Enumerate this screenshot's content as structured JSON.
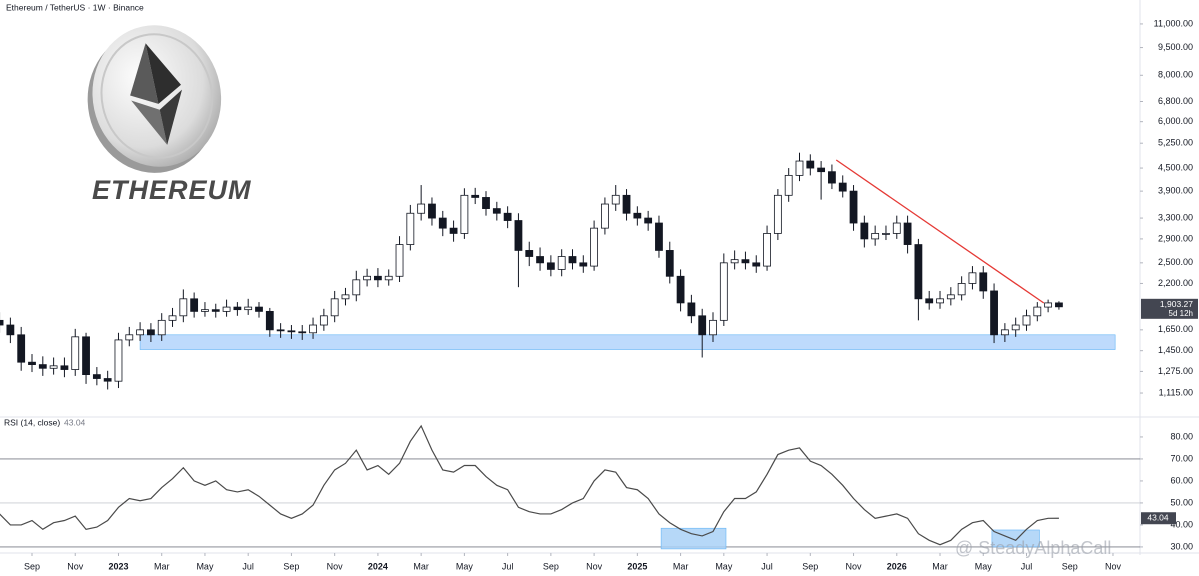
{
  "chart_data": [
    {
      "type": "candlestick",
      "title": "Ethereum / TetherUS · 1W · Binance",
      "annotations": [
        "ETHEREUM"
      ],
      "log_scale": true,
      "xlim": [
        -1.48,
        51.25
      ],
      "ylim": [
        973,
        12760
      ],
      "yticks": [
        {
          "value": 11000,
          "label": "11,000.00"
        },
        {
          "value": 9500,
          "label": "9,500.00"
        },
        {
          "value": 8000,
          "label": "8,000.00"
        },
        {
          "value": 6800,
          "label": "6,800.00"
        },
        {
          "value": 6000,
          "label": "6,000.00"
        },
        {
          "value": 5250,
          "label": "5,250.00"
        },
        {
          "value": 4500,
          "label": "4,500.00"
        },
        {
          "value": 3900,
          "label": "3,900.00"
        },
        {
          "value": 3300,
          "label": "3,300.00"
        },
        {
          "value": 2900,
          "label": "2,900.00"
        },
        {
          "value": 2500,
          "label": "2,500.00"
        },
        {
          "value": 2200,
          "label": "2,200.00"
        },
        {
          "value": 1650,
          "label": "1,650.00"
        },
        {
          "value": 1450,
          "label": "1,450.00"
        },
        {
          "value": 1275,
          "label": "1,275.00"
        },
        {
          "value": 1115,
          "label": "1,115.00"
        }
      ],
      "up_color": "#ffffff",
      "down_color": "#131722",
      "last_price_label": "1,903.27",
      "countdown": "5d 12h",
      "x": [
        -1.5,
        -1,
        -0.5,
        0,
        0.5,
        1,
        1.5,
        2,
        2.5,
        3,
        3.5,
        4,
        4.5,
        5,
        5.5,
        6,
        6.5,
        7,
        7.5,
        8,
        8.5,
        9,
        9.5,
        10,
        10.5,
        11,
        11.5,
        12,
        12.5,
        13,
        13.5,
        14,
        14.5,
        15,
        15.5,
        16,
        16.5,
        17,
        17.5,
        18,
        18.5,
        19,
        19.5,
        20,
        20.5,
        21,
        21.5,
        22,
        22.5,
        23,
        23.5,
        24,
        24.5,
        25,
        25.5,
        26,
        26.5,
        27,
        27.5,
        28,
        28.5,
        29,
        29.5,
        30,
        30.5,
        31,
        31.5,
        32,
        32.5,
        33,
        33.5,
        34,
        34.5,
        35,
        35.5,
        36,
        36.5,
        37,
        37.5,
        38,
        38.5,
        39,
        39.5,
        40,
        40.5,
        41,
        41.5,
        42,
        42.5,
        43,
        43.5,
        44,
        44.5,
        45,
        45.5,
        46,
        46.5,
        47,
        47.5
      ],
      "open": [
        1750,
        1700,
        1600,
        1350,
        1330,
        1300,
        1320,
        1290,
        1580,
        1250,
        1220,
        1200,
        1550,
        1600,
        1650,
        1600,
        1750,
        1800,
        2000,
        1850,
        1870,
        1850,
        1900,
        1870,
        1900,
        1850,
        1650,
        1640,
        1630,
        1620,
        1700,
        1800,
        2000,
        2050,
        2250,
        2300,
        2250,
        2300,
        2800,
        3400,
        3600,
        3300,
        3100,
        3000,
        3800,
        3750,
        3500,
        3400,
        3250,
        2700,
        2600,
        2500,
        2400,
        2600,
        2500,
        2450,
        3100,
        3600,
        3800,
        3400,
        3300,
        3200,
        2700,
        2300,
        1950,
        1800,
        1600,
        1750,
        2500,
        2550,
        2500,
        2450,
        3000,
        3800,
        4300,
        4700,
        4500,
        4400,
        4100,
        3900,
        3200,
        2900,
        3000,
        3000,
        3200,
        2800,
        2000,
        1950,
        2000,
        2050,
        2200,
        2350,
        2100,
        1600,
        1650,
        1700,
        1800,
        1900,
        1950
      ],
      "high": [
        1840,
        1780,
        1680,
        1420,
        1400,
        1390,
        1390,
        1660,
        1620,
        1310,
        1280,
        1620,
        1680,
        1730,
        1720,
        1830,
        1890,
        2120,
        2080,
        1960,
        1940,
        1990,
        1960,
        2000,
        1960,
        1890,
        1720,
        1700,
        1700,
        1780,
        1880,
        2100,
        2140,
        2380,
        2410,
        2420,
        2400,
        2950,
        3580,
        4050,
        3750,
        3450,
        3250,
        3970,
        3980,
        3900,
        3650,
        3550,
        3400,
        2850,
        2750,
        2620,
        2720,
        2720,
        2620,
        3250,
        3750,
        4050,
        3950,
        3550,
        3450,
        3350,
        2850,
        2400,
        2050,
        1880,
        1840,
        2650,
        2700,
        2680,
        2620,
        3150,
        3950,
        4500,
        4950,
        4900,
        4700,
        4600,
        4300,
        4050,
        3350,
        3150,
        3150,
        3350,
        3350,
        2900,
        2100,
        2100,
        2150,
        2300,
        2450,
        2450,
        2200,
        1720,
        1780,
        1870,
        1960,
        1990,
        1970
      ],
      "low": [
        1620,
        1520,
        1280,
        1270,
        1240,
        1250,
        1230,
        1240,
        1180,
        1170,
        1140,
        1150,
        1490,
        1540,
        1530,
        1540,
        1680,
        1730,
        1780,
        1790,
        1780,
        1790,
        1800,
        1810,
        1780,
        1580,
        1570,
        1560,
        1550,
        1560,
        1640,
        1730,
        1920,
        1970,
        2160,
        2150,
        2170,
        2220,
        2700,
        3250,
        3150,
        2950,
        2850,
        2900,
        3600,
        3350,
        3250,
        3100,
        2150,
        2450,
        2380,
        2300,
        2300,
        2400,
        2350,
        2380,
        2980,
        3450,
        3250,
        3150,
        3050,
        2580,
        2200,
        1850,
        1720,
        1390,
        1530,
        1690,
        2400,
        2400,
        2350,
        2380,
        2880,
        3650,
        4150,
        4300,
        3700,
        3950,
        3750,
        3050,
        2750,
        2780,
        2880,
        2900,
        2650,
        1750,
        1870,
        1880,
        1920,
        1980,
        2120,
        2000,
        1520,
        1530,
        1580,
        1640,
        1740,
        1840,
        1870
      ],
      "close": [
        1700,
        1600,
        1350,
        1330,
        1300,
        1320,
        1290,
        1580,
        1250,
        1220,
        1200,
        1550,
        1600,
        1650,
        1600,
        1750,
        1800,
        2000,
        1850,
        1870,
        1850,
        1900,
        1870,
        1900,
        1850,
        1650,
        1640,
        1630,
        1620,
        1700,
        1800,
        2000,
        2050,
        2250,
        2300,
        2250,
        2300,
        2800,
        3400,
        3600,
        3300,
        3100,
        3000,
        3800,
        3750,
        3500,
        3400,
        3250,
        2700,
        2600,
        2500,
        2400,
        2600,
        2500,
        2450,
        3100,
        3600,
        3800,
        3400,
        3300,
        3200,
        2700,
        2300,
        1950,
        1800,
        1600,
        1750,
        2500,
        2550,
        2500,
        2450,
        3000,
        3800,
        4300,
        4700,
        4500,
        4400,
        4100,
        3900,
        3200,
        2900,
        3000,
        3000,
        3200,
        2800,
        2000,
        1950,
        2000,
        2050,
        2200,
        2350,
        2100,
        1600,
        1650,
        1700,
        1800,
        1900,
        1950,
        1903.27
      ],
      "zones": [
        {
          "x": [
            5,
            50.1
          ],
          "y": [
            1460,
            1600
          ],
          "color": "#b3d4fc"
        }
      ],
      "trendline": {
        "x": [
          37.2,
          46.8
        ],
        "y": [
          4730,
          1949
        ],
        "color": "#e53935"
      }
    },
    {
      "type": "line",
      "title": "RSI (14, close)",
      "watermark": "@ SteadyAlphaCall",
      "xlim": [
        -1.48,
        51.25
      ],
      "ylim": [
        28.6,
        87.7
      ],
      "yticks": [
        {
          "value": 80,
          "label": "80.00"
        },
        {
          "value": 70,
          "label": "70.00"
        },
        {
          "value": 60,
          "label": "60.00"
        },
        {
          "value": 50,
          "label": "50.00"
        },
        {
          "value": 40,
          "label": "40.00"
        },
        {
          "value": 30,
          "label": "30.00"
        }
      ],
      "xticks": [
        {
          "value": 0,
          "label": "Sep"
        },
        {
          "value": 2,
          "label": "Nov"
        },
        {
          "value": 4,
          "label": "2023"
        },
        {
          "value": 6,
          "label": "Mar"
        },
        {
          "value": 8,
          "label": "May"
        },
        {
          "value": 10,
          "label": "Jul"
        },
        {
          "value": 12,
          "label": "Sep"
        },
        {
          "value": 14,
          "label": "Nov"
        },
        {
          "value": 16,
          "label": "2024"
        },
        {
          "value": 18,
          "label": "Mar"
        },
        {
          "value": 20,
          "label": "May"
        },
        {
          "value": 22,
          "label": "Jul"
        },
        {
          "value": 24,
          "label": "Sep"
        },
        {
          "value": 26,
          "label": "Nov"
        },
        {
          "value": 28,
          "label": "2025"
        },
        {
          "value": 30,
          "label": "Mar"
        },
        {
          "value": 32,
          "label": "May"
        },
        {
          "value": 34,
          "label": "Jul"
        },
        {
          "value": 36,
          "label": "Sep"
        },
        {
          "value": 38,
          "label": "Nov"
        },
        {
          "value": 40,
          "label": "2026"
        },
        {
          "value": 42,
          "label": "Mar"
        },
        {
          "value": 44,
          "label": "May"
        },
        {
          "value": 46,
          "label": "Jul"
        },
        {
          "value": 48,
          "label": "Sep"
        },
        {
          "value": 50,
          "label": "Nov"
        }
      ],
      "levels": [
        {
          "value": 70,
          "color": "#787b86"
        },
        {
          "value": 50,
          "color": "#c9cbd2"
        },
        {
          "value": 30,
          "color": "#787b86"
        }
      ],
      "x": [
        -1.5,
        -1,
        -0.5,
        0,
        0.5,
        1,
        1.5,
        2,
        2.5,
        3,
        3.5,
        4,
        4.5,
        5,
        5.5,
        6,
        6.5,
        7,
        7.5,
        8,
        8.5,
        9,
        9.5,
        10,
        10.5,
        11,
        11.5,
        12,
        12.5,
        13,
        13.5,
        14,
        14.5,
        15,
        15.5,
        16,
        16.5,
        17,
        17.5,
        18,
        18.5,
        19,
        19.5,
        20,
        20.5,
        21,
        21.5,
        22,
        22.5,
        23,
        23.5,
        24,
        24.5,
        25,
        25.5,
        26,
        26.5,
        27,
        27.5,
        28,
        28.5,
        29,
        29.5,
        30,
        30.5,
        31,
        31.5,
        32,
        32.5,
        33,
        33.5,
        34,
        34.5,
        35,
        35.5,
        36,
        36.5,
        37,
        37.5,
        38,
        38.5,
        39,
        39.5,
        40,
        40.5,
        41,
        41.5,
        42,
        42.5,
        43,
        43.5,
        44,
        44.5,
        45,
        45.5,
        46,
        46.5,
        47,
        47.5
      ],
      "series": [
        {
          "color": "#4a4a4a",
          "values": [
            45,
            40,
            40,
            42,
            38,
            41,
            42,
            44,
            38,
            39,
            42,
            48,
            52,
            51,
            52,
            57,
            61,
            66,
            60,
            58,
            60,
            56,
            55,
            56,
            53,
            49,
            45,
            43,
            45,
            49,
            58,
            65,
            68,
            74,
            65,
            67,
            63,
            68,
            78,
            85,
            74,
            65,
            64,
            67,
            67,
            62,
            58,
            56,
            48,
            46,
            45,
            45,
            47,
            50,
            52,
            60,
            65,
            64,
            57,
            56,
            52,
            45,
            41,
            38,
            36,
            35,
            37,
            46,
            52,
            52,
            55,
            63,
            72,
            74,
            75,
            69,
            67,
            63,
            58,
            52,
            47,
            43,
            44,
            45,
            43,
            36,
            33,
            31,
            33,
            38,
            41,
            42,
            37,
            35,
            33,
            38,
            42,
            43,
            43.04
          ]
        }
      ],
      "zones": [
        {
          "x": [
            29.1,
            32.1
          ],
          "y": [
            29.1,
            38.5
          ],
          "color": "#a9d1f7"
        },
        {
          "x": [
            44.4,
            46.6
          ],
          "y": [
            30,
            37.7
          ],
          "color": "#a9d1f7"
        }
      ]
    }
  ]
}
